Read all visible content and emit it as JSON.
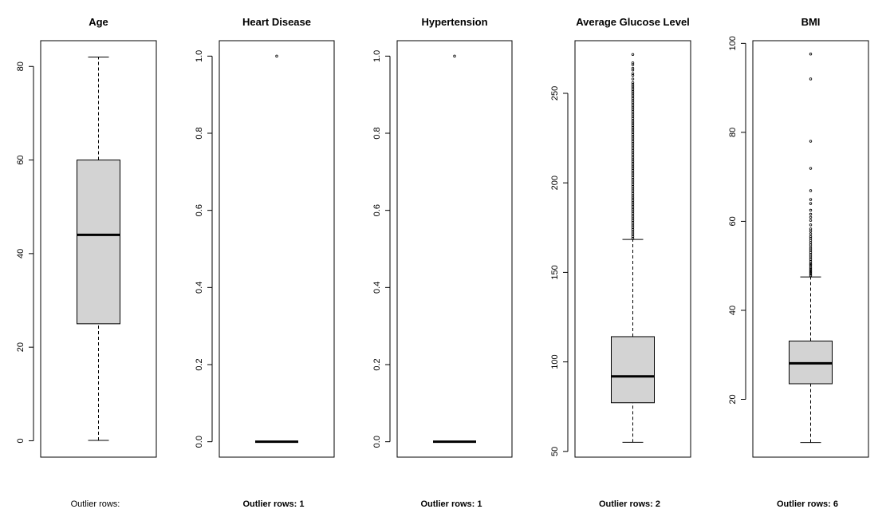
{
  "chart_data": [
    {
      "type": "box",
      "title": "Age",
      "ylim": [
        -3.5,
        85.5
      ],
      "ticks": [
        0,
        20,
        40,
        60,
        80
      ],
      "tick_labels": [
        "0",
        "20",
        "40",
        "60",
        "80"
      ],
      "box": {
        "whisker_low": 0.08,
        "q1": 25,
        "median": 44,
        "q3": 60,
        "whisker_high": 82
      },
      "outliers": [],
      "footnote": "Outlier rows:",
      "footnote_bold": false
    },
    {
      "type": "box",
      "title": "Heart Disease",
      "ylim": [
        -0.04,
        1.04
      ],
      "ticks": [
        0.0,
        0.2,
        0.4,
        0.6,
        0.8,
        1.0
      ],
      "tick_labels": [
        "0.0",
        "0.2",
        "0.4",
        "0.6",
        "0.8",
        "1.0"
      ],
      "box": {
        "whisker_low": 0,
        "q1": 0,
        "median": 0,
        "q3": 0,
        "whisker_high": 0
      },
      "outliers": [
        1.0
      ],
      "footnote": "Outlier rows:  1",
      "footnote_bold": true
    },
    {
      "type": "box",
      "title": "Hypertension",
      "ylim": [
        -0.04,
        1.04
      ],
      "ticks": [
        0.0,
        0.2,
        0.4,
        0.6,
        0.8,
        1.0
      ],
      "tick_labels": [
        "0.0",
        "0.2",
        "0.4",
        "0.6",
        "0.8",
        "1.0"
      ],
      "box": {
        "whisker_low": 0,
        "q1": 0,
        "median": 0,
        "q3": 0,
        "whisker_high": 0
      },
      "outliers": [
        1.0
      ],
      "footnote": "Outlier rows:  1",
      "footnote_bold": true
    },
    {
      "type": "box",
      "title": "Average Glucose Level",
      "ylim": [
        46.8,
        279.4
      ],
      "ticks": [
        50,
        100,
        150,
        200,
        250
      ],
      "tick_labels": [
        "50",
        "100",
        "150",
        "200",
        "250"
      ],
      "box": {
        "whisker_low": 55.1,
        "q1": 77.2,
        "median": 91.9,
        "q3": 114.1,
        "whisker_high": 168.4
      },
      "outliers": [
        169,
        170,
        171,
        172,
        173,
        174,
        175,
        176,
        177,
        178,
        179,
        180,
        181,
        182,
        183,
        184,
        185,
        186,
        187,
        188,
        189,
        190,
        191,
        192,
        193,
        194,
        195,
        196,
        197,
        198,
        199,
        200,
        201,
        202,
        203,
        204,
        205,
        206,
        207,
        208,
        209,
        210,
        211,
        212,
        213,
        214,
        215,
        216,
        217,
        218,
        219,
        220,
        221,
        222,
        223,
        224,
        225,
        226,
        227,
        228,
        229,
        230,
        231,
        232,
        233,
        234,
        235,
        236,
        237,
        238,
        239,
        240,
        241,
        242,
        243,
        244,
        245,
        246,
        247,
        248,
        249,
        250,
        251,
        252,
        253,
        254,
        255,
        256,
        258,
        260,
        261,
        263,
        264,
        266,
        267,
        271.7
      ],
      "footnote": "Outlier rows: 2",
      "footnote_bold": true
    },
    {
      "type": "box",
      "title": "BMI",
      "ylim": [
        7.0,
        100.6
      ],
      "ticks": [
        20,
        40,
        60,
        80,
        100
      ],
      "tick_labels": [
        "20",
        "40",
        "60",
        "80",
        "100"
      ],
      "box": {
        "whisker_low": 10.3,
        "q1": 23.5,
        "median": 28.1,
        "q3": 33.1,
        "whisker_high": 47.5
      },
      "outliers": [
        47.8,
        48.1,
        48.4,
        48.7,
        49.0,
        49.3,
        49.6,
        50.0,
        50.3,
        50.6,
        51.0,
        51.4,
        51.8,
        52.2,
        52.6,
        53.0,
        53.4,
        53.8,
        54.2,
        54.7,
        55.2,
        55.7,
        56.2,
        56.6,
        57.2,
        57.8,
        58.3,
        59.2,
        60.2,
        60.9,
        61.6,
        62.5,
        64.0,
        64.9,
        66.9,
        71.9,
        78.0,
        92.0,
        97.6
      ],
      "footnote": "Outlier rows: 6",
      "footnote_bold": true
    }
  ]
}
